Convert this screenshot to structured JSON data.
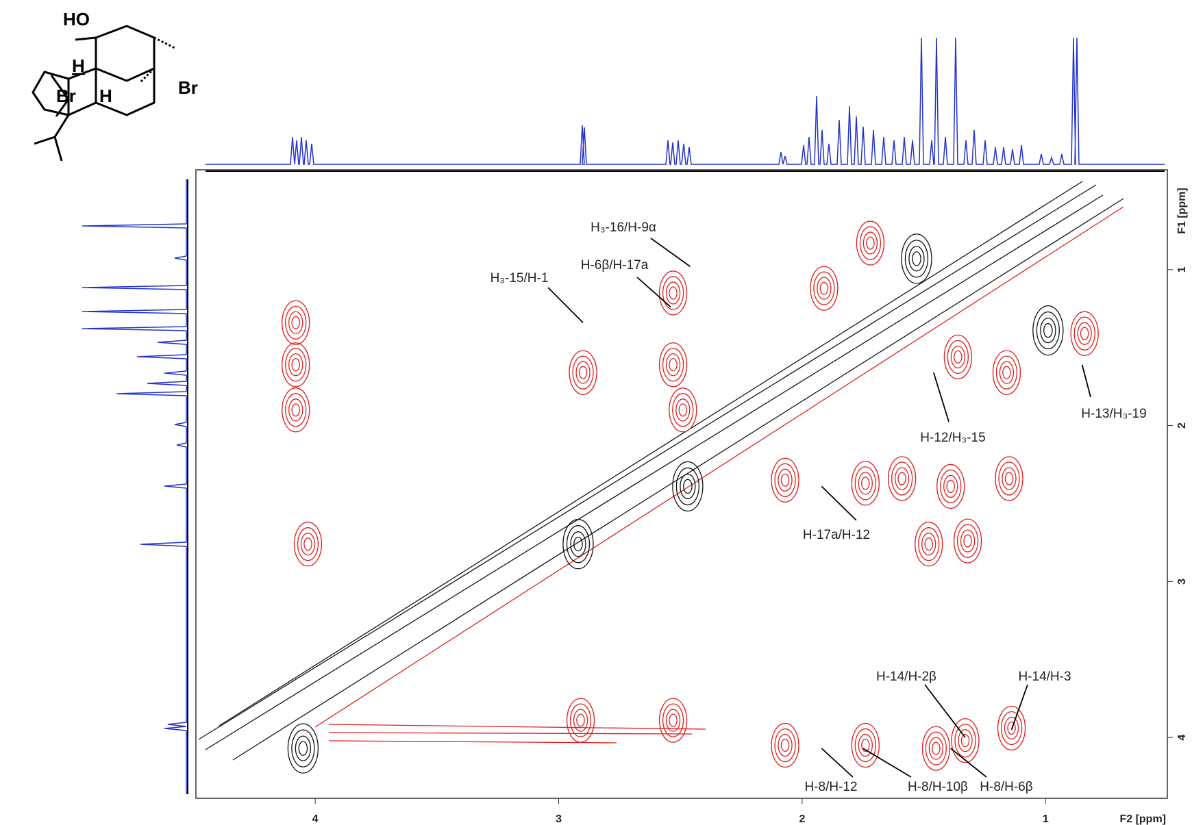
{
  "chart_data": {
    "type": "contour",
    "xlabel": "F2 [ppm]",
    "ylabel": "F1 [ppm]",
    "xlim": [
      4.49,
      0.5
    ],
    "ylim": [
      0.36,
      4.39
    ],
    "xticks": [
      4,
      3,
      2,
      1
    ],
    "yticks": [
      1,
      2,
      3,
      4
    ],
    "red_peaks": {
      "color": "#e0201e",
      "x": [
        4.08,
        4.08,
        4.08,
        2.53,
        2.53,
        2.49,
        2.9,
        4.03,
        2.91,
        2.53,
        2.07,
        1.74,
        1.59,
        1.39,
        1.15,
        1.48,
        1.32,
        1.16,
        2.07,
        1.74,
        1.45,
        1.33,
        1.14,
        0.84,
        1.91,
        1.72,
        1.36
      ],
      "y": [
        1.34,
        1.61,
        1.9,
        1.15,
        1.61,
        1.9,
        1.66,
        2.76,
        3.89,
        3.89,
        2.35,
        2.37,
        2.34,
        2.39,
        2.34,
        2.76,
        2.74,
        1.66,
        4.05,
        4.05,
        4.07,
        4.02,
        3.94,
        1.41,
        1.12,
        0.83,
        1.56
      ]
    },
    "black_peaks": {
      "color": "#111111",
      "x": [
        2.92,
        0.99,
        1.53,
        4.05,
        2.47
      ],
      "y": [
        2.76,
        1.39,
        0.93,
        4.07,
        2.39
      ]
    },
    "annotations": [
      {
        "text": "H₃-16/H-9α",
        "x": 2.46,
        "y": 0.98
      },
      {
        "text": "H-6β/H-17a",
        "x": 2.54,
        "y": 1.24
      },
      {
        "text": "H₃-15/H-1",
        "x": 2.9,
        "y": 1.34
      },
      {
        "text": "H-13/H₃-19",
        "x": 0.85,
        "y": 1.61
      },
      {
        "text": "H-12/H₃-15",
        "x": 1.46,
        "y": 1.66
      },
      {
        "text": "H-17a/H-12",
        "x": 1.92,
        "y": 2.39
      },
      {
        "text": "H-14/H-2β",
        "x": 1.33,
        "y": 4.0
      },
      {
        "text": "H-14/H-3",
        "x": 1.14,
        "y": 3.95
      },
      {
        "text": "H-8/H-12",
        "x": 1.92,
        "y": 4.07
      },
      {
        "text": "H-8/H-10β",
        "x": 1.75,
        "y": 4.07
      },
      {
        "text": "H-8/H-6β",
        "x": 1.39,
        "y": 4.07
      }
    ]
  },
  "structure": {
    "labels": [
      "HO",
      "H",
      "H",
      "Br",
      "Br"
    ]
  }
}
